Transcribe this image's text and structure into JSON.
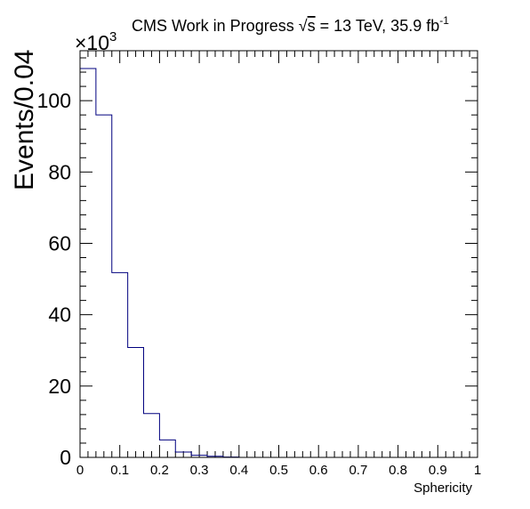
{
  "header": {
    "title_prefix": "CMS Work in Progress",
    "sqrt_s": "s",
    "title_suffix": " = 13 TeV, 35.9 fb",
    "lumi_exponent": "-1"
  },
  "chart_data": {
    "type": "histogram",
    "xlabel": "Sphericity",
    "ylabel": "Events/0.04",
    "y_multiplier_base": "×10",
    "y_multiplier_exponent": "3",
    "xlim": [
      0,
      1
    ],
    "ylim": [
      0,
      114
    ],
    "bin_width": 0.04,
    "x_ticks": [
      0,
      0.1,
      0.2,
      0.3,
      0.4,
      0.5,
      0.6,
      0.7,
      0.8,
      0.9,
      1
    ],
    "x_tick_labels": [
      "0",
      "0.1",
      "0.2",
      "0.3",
      "0.4",
      "0.5",
      "0.6",
      "0.7",
      "0.8",
      "0.9",
      "1"
    ],
    "y_ticks": [
      0,
      20,
      40,
      60,
      80,
      100
    ],
    "y_tick_labels": [
      "0",
      "20",
      "40",
      "60",
      "80",
      "100"
    ],
    "series": [
      {
        "color": "#00007f",
        "bins": [
          {
            "x_low": 0.0,
            "x_high": 0.04,
            "value": 109.0
          },
          {
            "x_low": 0.04,
            "x_high": 0.08,
            "value": 96.0
          },
          {
            "x_low": 0.08,
            "x_high": 0.12,
            "value": 51.8
          },
          {
            "x_low": 0.12,
            "x_high": 0.16,
            "value": 30.8
          },
          {
            "x_low": 0.16,
            "x_high": 0.2,
            "value": 12.3
          },
          {
            "x_low": 0.2,
            "x_high": 0.24,
            "value": 4.9
          },
          {
            "x_low": 0.24,
            "x_high": 0.28,
            "value": 1.5
          },
          {
            "x_low": 0.28,
            "x_high": 0.32,
            "value": 0.6
          },
          {
            "x_low": 0.32,
            "x_high": 0.36,
            "value": 0.3
          },
          {
            "x_low": 0.36,
            "x_high": 0.4,
            "value": 0.1
          },
          {
            "x_low": 0.4,
            "x_high": 0.44,
            "value": 0.0
          },
          {
            "x_low": 0.44,
            "x_high": 0.48,
            "value": 0.0
          },
          {
            "x_low": 0.48,
            "x_high": 0.52,
            "value": 0.0
          },
          {
            "x_low": 0.52,
            "x_high": 0.56,
            "value": 0.0
          },
          {
            "x_low": 0.56,
            "x_high": 0.6,
            "value": 0.0
          },
          {
            "x_low": 0.6,
            "x_high": 0.64,
            "value": 0.0
          },
          {
            "x_low": 0.64,
            "x_high": 0.68,
            "value": 0.0
          },
          {
            "x_low": 0.68,
            "x_high": 0.72,
            "value": 0.0
          },
          {
            "x_low": 0.72,
            "x_high": 0.76,
            "value": 0.0
          },
          {
            "x_low": 0.76,
            "x_high": 0.8,
            "value": 0.0
          },
          {
            "x_low": 0.8,
            "x_high": 0.84,
            "value": 0.0
          },
          {
            "x_low": 0.84,
            "x_high": 0.88,
            "value": 0.0
          },
          {
            "x_low": 0.88,
            "x_high": 0.92,
            "value": 0.0
          },
          {
            "x_low": 0.92,
            "x_high": 0.96,
            "value": 0.0
          },
          {
            "x_low": 0.96,
            "x_high": 1.0,
            "value": 0.0
          }
        ]
      }
    ],
    "grid": false,
    "legend": "none"
  }
}
